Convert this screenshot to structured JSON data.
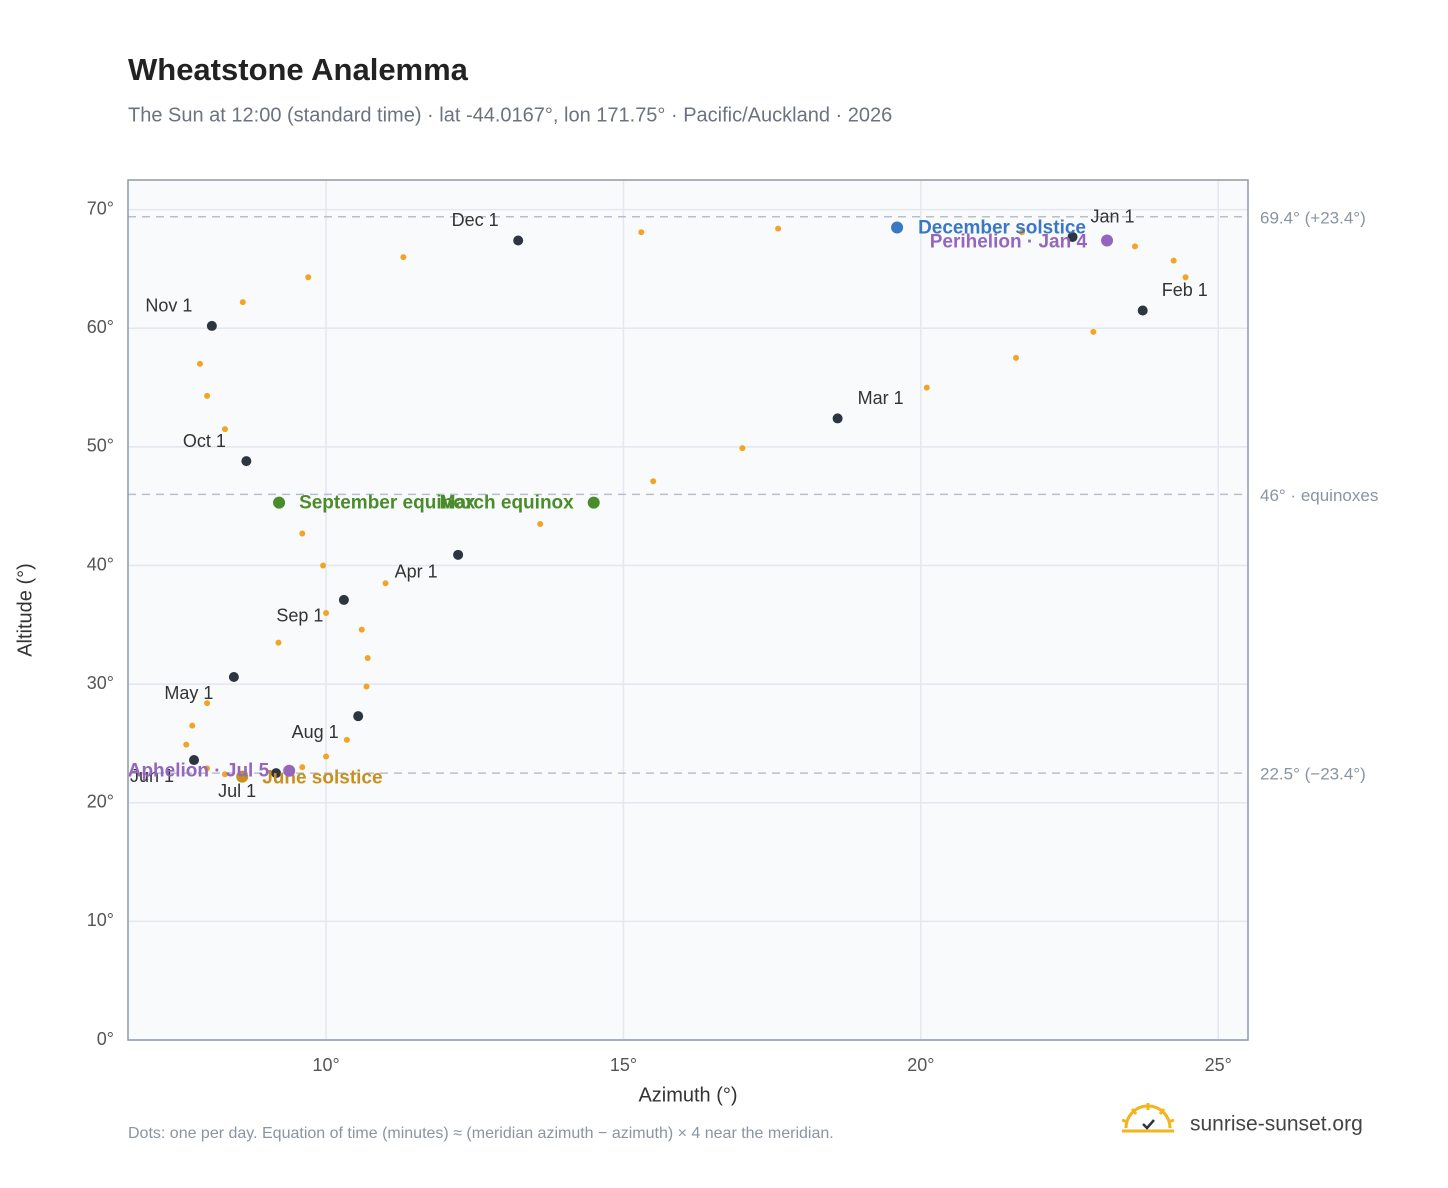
{
  "chart_data": {
    "type": "scatter",
    "title": "Wheatstone Analemma",
    "subtitle": "The Sun at 12:00 (standard time) · lat -44.0167°, lon 171.75° · Pacific/Auckland · 2026",
    "x_label": "Azimuth (°)",
    "y_label": "Altitude (°)",
    "xlim": [
      6.67,
      25.5
    ],
    "ylim": [
      0,
      72.5
    ],
    "xticks": [
      {
        "value": 10,
        "label": "10°"
      },
      {
        "value": 15,
        "label": "15°"
      },
      {
        "value": 20,
        "label": "20°"
      },
      {
        "value": 25,
        "label": "25°"
      }
    ],
    "yticks": [
      {
        "value": 0,
        "label": "0°"
      },
      {
        "value": 10,
        "label": "10°"
      },
      {
        "value": 20,
        "label": "20°"
      },
      {
        "value": 30,
        "label": "30°"
      },
      {
        "value": 40,
        "label": "40°"
      },
      {
        "value": 50,
        "label": "50°"
      },
      {
        "value": 60,
        "label": "60°"
      },
      {
        "value": 70,
        "label": "70°"
      }
    ],
    "grid": true,
    "daily": {
      "color": "#f2a427",
      "x": [
        22.55,
        23.6,
        24.25,
        24.45,
        23.73,
        22.9,
        21.6,
        20.1,
        18.6,
        17.0,
        15.5,
        14.5,
        13.6,
        12.22,
        11.0,
        10.0,
        9.2,
        8.45,
        8.0,
        7.75,
        7.65,
        7.78,
        8.0,
        8.3,
        8.59,
        9.16,
        9.6,
        10.0,
        10.35,
        10.54,
        10.68,
        10.7,
        10.6,
        10.3,
        9.95,
        9.6,
        9.21,
        8.66,
        8.3,
        8.0,
        7.88,
        8.08,
        8.6,
        9.7,
        11.3,
        13.23,
        15.3,
        17.6,
        19.6,
        21.7
      ],
      "y": [
        67.7,
        66.9,
        65.7,
        64.3,
        61.5,
        59.7,
        57.5,
        55.0,
        52.4,
        49.9,
        47.1,
        45.3,
        43.5,
        40.9,
        38.5,
        36.0,
        33.5,
        30.6,
        28.4,
        26.5,
        24.9,
        23.6,
        22.9,
        22.4,
        22.2,
        22.5,
        23.0,
        23.9,
        25.3,
        27.3,
        29.8,
        32.2,
        34.6,
        37.1,
        40.0,
        42.7,
        45.3,
        48.8,
        51.5,
        54.3,
        57.0,
        60.2,
        62.2,
        64.3,
        66.0,
        67.4,
        68.1,
        68.4,
        68.5,
        68.1
      ]
    },
    "month_markers": [
      {
        "label": "Jan 1",
        "x": 22.55,
        "y": 67.7
      },
      {
        "label": "Feb 1",
        "x": 23.73,
        "y": 61.5
      },
      {
        "label": "Mar 1",
        "x": 18.6,
        "y": 52.4
      },
      {
        "label": "Apr 1",
        "x": 12.22,
        "y": 40.9
      },
      {
        "label": "May 1",
        "x": 8.45,
        "y": 30.6
      },
      {
        "label": "Jun 1",
        "x": 7.78,
        "y": 23.6
      },
      {
        "label": "Jul 1",
        "x": 9.16,
        "y": 22.5
      },
      {
        "label": "Aug 1",
        "x": 10.54,
        "y": 27.3
      },
      {
        "label": "Sep 1",
        "x": 10.3,
        "y": 37.1
      },
      {
        "label": "Oct 1",
        "x": 8.66,
        "y": 48.8
      },
      {
        "label": "Nov 1",
        "x": 8.08,
        "y": 60.2
      },
      {
        "label": "Dec 1",
        "x": 13.23,
        "y": 67.4
      }
    ],
    "marker_color": "#2d3540",
    "events": [
      {
        "label": "December solstice",
        "x": 19.6,
        "y": 68.5,
        "color": "#3a78c3"
      },
      {
        "label": "Perihelion · Jan 4",
        "x": 23.13,
        "y": 67.4,
        "color": "#9467bd"
      },
      {
        "label": "March equinox",
        "x": 14.5,
        "y": 45.3,
        "color": "#4a8c2a"
      },
      {
        "label": "September equinox",
        "x": 9.21,
        "y": 45.3,
        "color": "#4a8c2a"
      },
      {
        "label": "June solstice",
        "x": 8.59,
        "y": 22.2,
        "color": "#c8901e"
      },
      {
        "label": "Aphelion · Jul 5",
        "x": 9.38,
        "y": 22.7,
        "color": "#9467bd"
      }
    ],
    "ref_lines": [
      {
        "value": 69.4,
        "label": "69.4° (+23.4°)"
      },
      {
        "value": 46,
        "label": "46° · equinoxes"
      },
      {
        "value": 22.5,
        "label": "22.5° (−23.4°)"
      }
    ],
    "footnote": "Dots: one per day. Equation of time (minutes) ≈ (meridian azimuth − azimuth) × 4 near the meridian.",
    "brand": "sunrise-sunset.org"
  }
}
